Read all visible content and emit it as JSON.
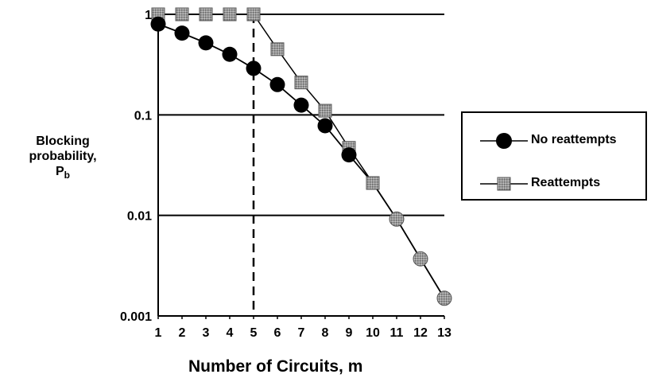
{
  "chart_data": {
    "type": "line",
    "title": "",
    "xlabel": "Number of Circuits, m",
    "ylabel": [
      "Blocking",
      "probability,",
      "P",
      "b"
    ],
    "yscale": "log",
    "ylim": [
      0.001,
      1
    ],
    "xlim": [
      1,
      13
    ],
    "x": [
      1,
      2,
      3,
      4,
      5,
      6,
      7,
      8,
      9,
      10,
      11,
      12,
      13
    ],
    "xticks": [
      "1",
      "2",
      "3",
      "4",
      "5",
      "6",
      "7",
      "8",
      "9",
      "10",
      "11",
      "12",
      "13"
    ],
    "yticks": [
      {
        "value": 0.001,
        "label": "0.001"
      },
      {
        "value": 0.01,
        "label": "0.01"
      },
      {
        "value": 0.1,
        "label": "0.1"
      },
      {
        "value": 1,
        "label": "1"
      }
    ],
    "grid": "horizontal",
    "reference_line": {
      "x": 5,
      "style": "dashed"
    },
    "legend_position": "right",
    "series": [
      {
        "name": "No reattempts",
        "marker": "circle",
        "color": "#000000",
        "values": [
          0.8,
          0.65,
          0.52,
          0.4,
          0.29,
          0.2,
          0.125,
          0.078,
          0.04,
          0.021,
          0.0092,
          0.0037,
          0.0015
        ]
      },
      {
        "name": "Reattempts",
        "marker": "square",
        "color": "#888888",
        "values": [
          1,
          1,
          1,
          1,
          1,
          0.45,
          0.21,
          0.11,
          0.047,
          0.021,
          0.0092,
          0.0037,
          0.0015
        ]
      }
    ]
  }
}
